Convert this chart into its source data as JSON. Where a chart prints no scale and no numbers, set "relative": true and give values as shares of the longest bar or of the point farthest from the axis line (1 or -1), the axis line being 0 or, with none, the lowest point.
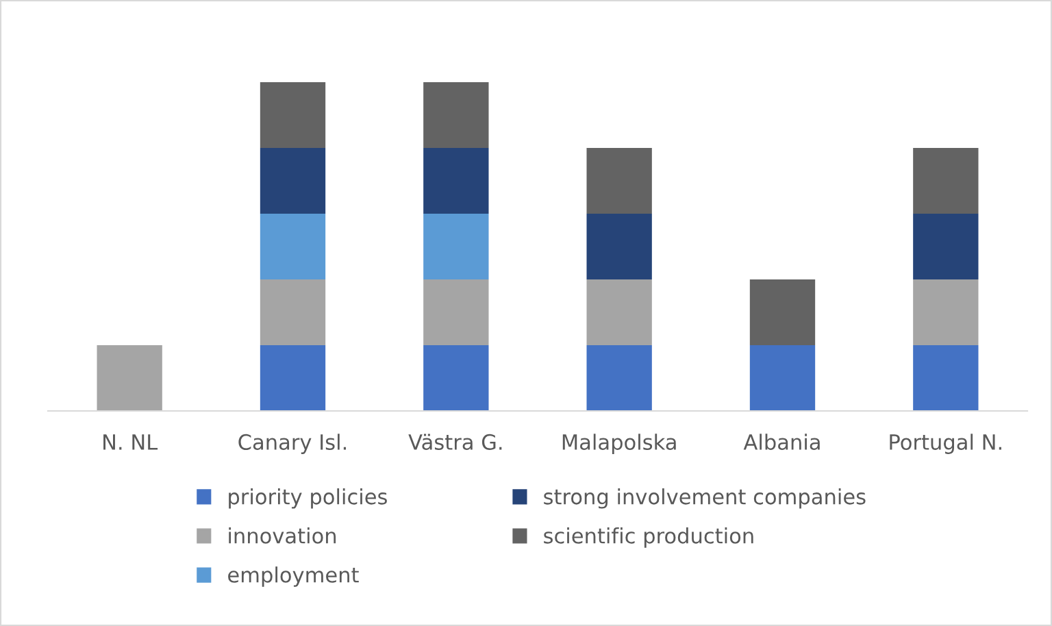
{
  "chart_data": {
    "type": "bar",
    "stacked": true,
    "relative": true,
    "legend": "bottom",
    "grid": false,
    "categories": [
      "N. NL",
      "Canary Isl.",
      "Västra G.",
      "Malapolska",
      "Albania",
      "Portugal N."
    ],
    "series": [
      {
        "name": "priority policies",
        "color": "#4472c4",
        "values": [
          null,
          0.2,
          0.2,
          0.2,
          0.2,
          0.2
        ]
      },
      {
        "name": "innovation",
        "color": "#a5a5a5",
        "values": [
          0.2,
          0.2,
          0.2,
          0.2,
          null,
          0.2
        ]
      },
      {
        "name": "employment",
        "color": "#5b9bd5",
        "values": [
          null,
          0.2,
          0.2,
          null,
          null,
          null
        ]
      },
      {
        "name": "strong involvement companies",
        "color": "#264478",
        "values": [
          null,
          0.2,
          0.2,
          0.2,
          null,
          0.2
        ]
      },
      {
        "name": "scientific production",
        "color": "#636363",
        "values": [
          null,
          0.2,
          0.2,
          0.2,
          0.2,
          0.2
        ]
      }
    ]
  }
}
